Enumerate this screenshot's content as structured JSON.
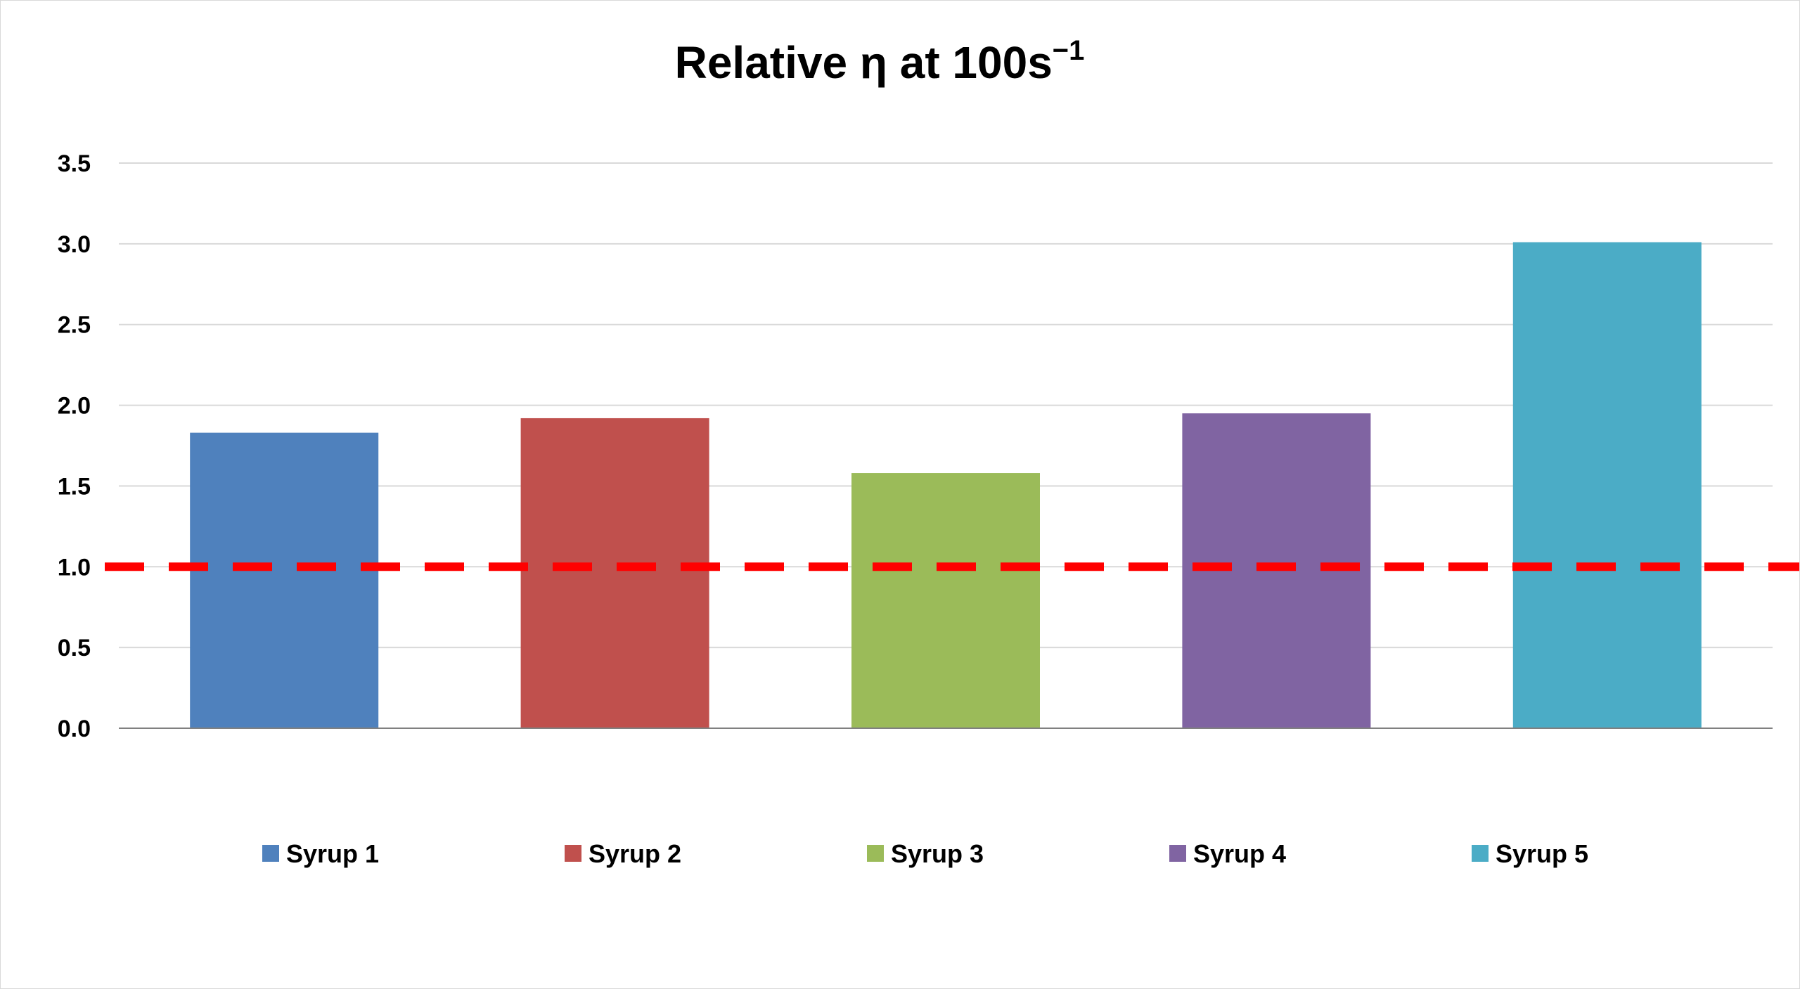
{
  "chart_data": {
    "type": "bar",
    "title": "Relative η at 100s",
    "title_superscript": "−1",
    "xlabel": "",
    "ylabel": "",
    "ylim": [
      0,
      3.5
    ],
    "yticks": [
      0.0,
      0.5,
      1.0,
      1.5,
      2.0,
      2.5,
      3.0,
      3.5
    ],
    "ytick_labels": [
      "0.0",
      "0.5",
      "1.0",
      "1.5",
      "2.0",
      "2.5",
      "3.0",
      "3.5"
    ],
    "grid": true,
    "legend_position": "bottom",
    "categories": [
      "Syrup 1",
      "Syrup 2",
      "Syrup 3",
      "Syrup 4",
      "Syrup 5"
    ],
    "values": [
      1.83,
      1.92,
      1.58,
      1.95,
      3.01
    ],
    "colors": [
      "#4F81BD",
      "#C0504D",
      "#9BBB59",
      "#8064A2",
      "#4BACC6"
    ],
    "reference_line": {
      "value": 1.0,
      "style": "dashed",
      "color": "#FF0000"
    }
  }
}
